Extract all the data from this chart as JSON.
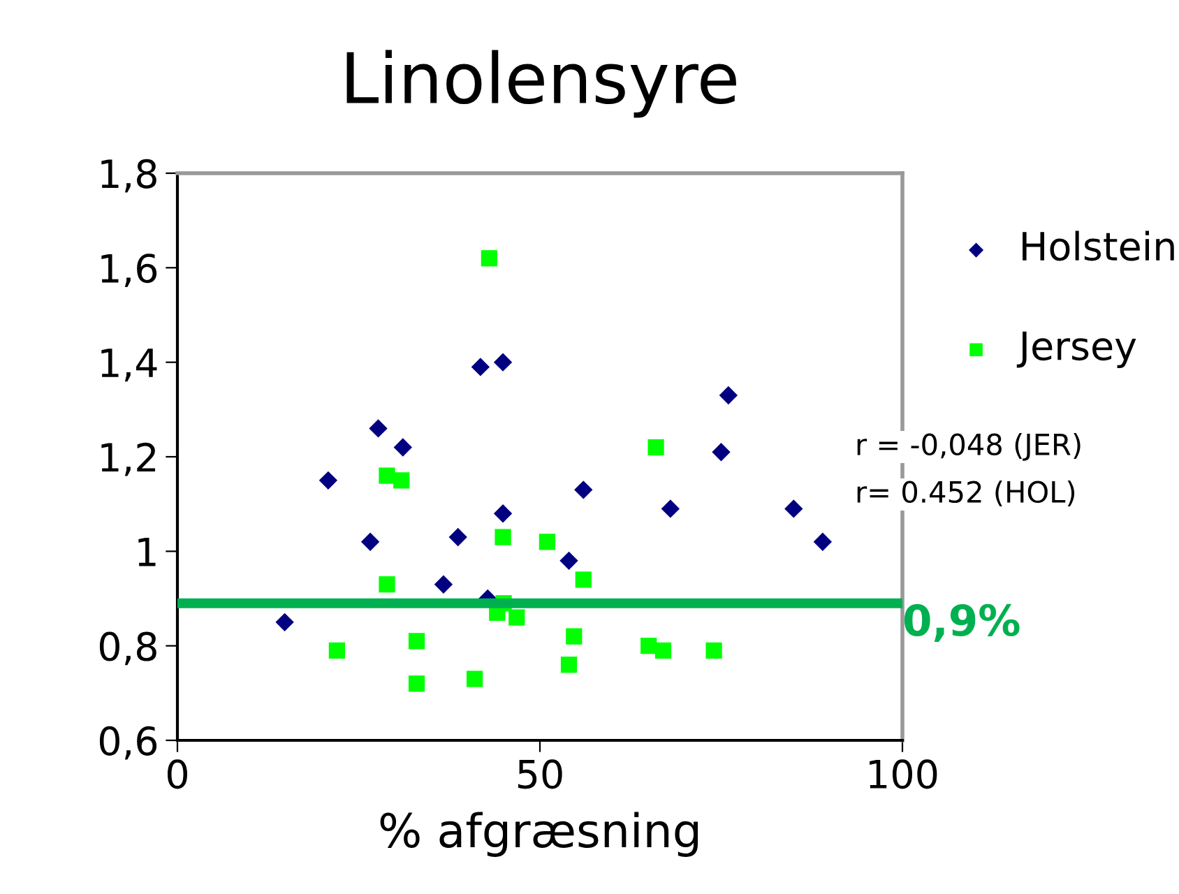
{
  "chart_data": {
    "type": "scatter",
    "title": "Linolensyre",
    "xlabel": "% afgræsning",
    "xlim": [
      0,
      100
    ],
    "xticks": [
      0,
      50,
      100
    ],
    "ylim": [
      0.6,
      1.8
    ],
    "yticks": [
      {
        "value": 0.6,
        "label": "0,6"
      },
      {
        "value": 0.8,
        "label": "0,8"
      },
      {
        "value": 1,
        "label": "1"
      },
      {
        "value": 1.2,
        "label": "1,2"
      },
      {
        "value": 1.4,
        "label": "1,4"
      },
      {
        "value": 1.6,
        "label": "1,6"
      },
      {
        "value": 1.8,
        "label": "1,8"
      }
    ],
    "grid": false,
    "legend": "right",
    "series": [
      {
        "name": "Holstein",
        "color": "#000080",
        "marker": "diamond",
        "x": [
          14.8,
          20.8,
          26.6,
          27.7,
          31.1,
          36.7,
          38.7,
          41.8,
          44.9,
          42.8,
          44.9,
          54,
          56,
          68,
          75,
          76,
          85,
          89
        ],
        "values": [
          0.85,
          1.15,
          1.02,
          1.26,
          1.22,
          0.93,
          1.03,
          1.39,
          1.4,
          0.9,
          1.08,
          0.98,
          1.13,
          1.09,
          1.21,
          1.33,
          1.09,
          1.02
        ]
      },
      {
        "name": "Jersey",
        "color": "#00ff00",
        "marker": "square",
        "x": [
          43,
          28.9,
          30.9,
          28.9,
          22,
          33,
          33,
          41,
          44.9,
          44.1,
          45,
          46.8,
          51,
          56,
          54.7,
          54,
          66,
          65,
          67,
          74
        ],
        "values": [
          1.62,
          1.16,
          1.15,
          0.93,
          0.79,
          0.81,
          0.72,
          0.73,
          1.03,
          0.87,
          0.89,
          0.86,
          1.02,
          0.94,
          0.82,
          0.76,
          1.22,
          0.8,
          0.79,
          0.79
        ]
      }
    ],
    "ref_lines": [
      {
        "axis": "y",
        "value": 0.89,
        "label": "0,9%",
        "color": "#00b050"
      }
    ],
    "annotations": [
      "r = -0,048 (JER)",
      "r= 0.452 (HOL)"
    ]
  }
}
